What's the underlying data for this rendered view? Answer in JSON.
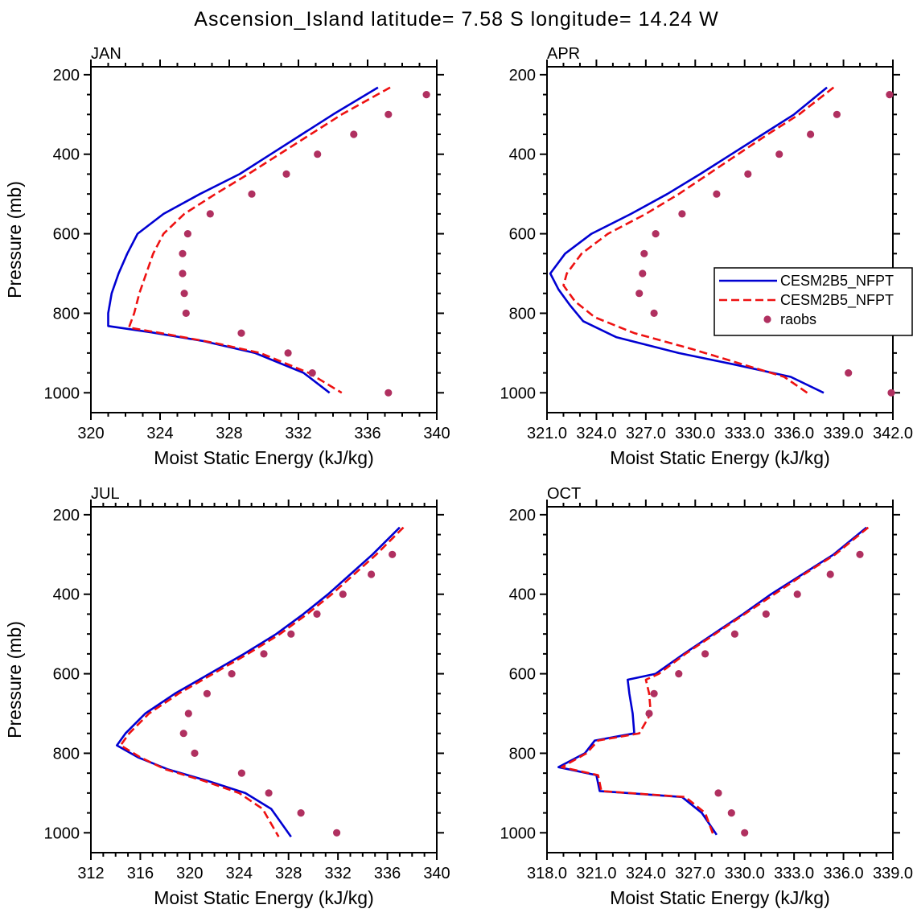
{
  "title": "Ascension_Island  latitude= 7.58 S longitude= 14.24 W",
  "colors": {
    "axis": "#000000",
    "model1": "#0000d2",
    "model2": "#ee1111",
    "raobs": "#b03060"
  },
  "legend": {
    "items": [
      {
        "type": "line",
        "style": "solid",
        "color_key": "model1",
        "label": "CESM2B5_NFPT"
      },
      {
        "type": "line",
        "style": "dashed",
        "color_key": "model2",
        "label": "CESM2B5_NFPT"
      },
      {
        "type": "dot",
        "style": "dot",
        "color_key": "raobs",
        "label": "raobs"
      }
    ]
  },
  "chart_data": {
    "type": "line",
    "title": "Ascension_Island  latitude= 7.58 S longitude= 14.24 W",
    "xlabel": "Moist Static Energy (kJ/kg)",
    "ylabel": "Pressure (mb)",
    "ylim": [
      180,
      1050
    ],
    "y_inverted": true,
    "yticks": [
      200,
      400,
      600,
      800,
      1000
    ],
    "y_minor_step": 50,
    "x_minor_step": 1,
    "series_meta": {
      "model1": {
        "label": "CESM2B5_NFPT",
        "style": "solid"
      },
      "model2": {
        "label": "CESM2B5_NFPT",
        "style": "dashed"
      },
      "raobs": {
        "label": "raobs",
        "style": "dot"
      }
    },
    "panels": [
      {
        "name": "JAN",
        "xlim": [
          320,
          340
        ],
        "xticks": [
          320,
          324,
          328,
          332,
          336,
          340
        ],
        "xtick_labels": [
          "320",
          "324",
          "328",
          "332",
          "336",
          "340"
        ],
        "show_ylabel": true,
        "legend": false,
        "series": [
          {
            "key": "model1",
            "pressure": [
              232,
              300,
              350,
              400,
              450,
              500,
              550,
              600,
              650,
              700,
              750,
              800,
              832,
              848,
              870,
              900,
              950,
              1000
            ],
            "value": [
              336.6,
              334.0,
              332.2,
              330.4,
              328.6,
              326.3,
              324.2,
              322.7,
              322.1,
              321.6,
              321.2,
              321.0,
              321.0,
              323.5,
              326.5,
              329.5,
              332.3,
              333.8
            ]
          },
          {
            "key": "model2",
            "pressure": [
              232,
              300,
              350,
              400,
              450,
              500,
              550,
              600,
              650,
              700,
              750,
              800,
              836,
              852,
              875,
              900,
              950,
              1000
            ],
            "value": [
              337.3,
              334.5,
              332.7,
              330.9,
              329.1,
              327.2,
              325.4,
              324.2,
              323.6,
              323.2,
              322.8,
              322.5,
              322.2,
              324.3,
              327.2,
              329.8,
              332.6,
              334.5
            ]
          }
        ],
        "dots": {
          "pressure": [
            250,
            300,
            350,
            400,
            450,
            500,
            550,
            600,
            650,
            700,
            750,
            800,
            850,
            900,
            950,
            1000
          ],
          "value": [
            339.4,
            337.2,
            335.2,
            333.1,
            331.3,
            329.3,
            326.9,
            325.6,
            325.3,
            325.3,
            325.4,
            325.5,
            328.7,
            331.4,
            332.8,
            337.2
          ]
        }
      },
      {
        "name": "APR",
        "xlim": [
          321,
          342
        ],
        "xticks": [
          321,
          324,
          327,
          330,
          333,
          336,
          339,
          342
        ],
        "xtick_labels": [
          "321.0",
          "324.0",
          "327.0",
          "330.0",
          "333.0",
          "336.0",
          "339.0",
          "342.0"
        ],
        "show_ylabel": false,
        "legend": true,
        "series": [
          {
            "key": "model1",
            "pressure": [
              232,
              300,
              350,
              400,
              450,
              500,
              550,
              600,
              650,
              700,
              740,
              780,
              820,
              860,
              900,
              930,
              960,
              1000
            ],
            "value": [
              338.0,
              336.0,
              334.1,
              332.2,
              330.3,
              328.3,
              326.1,
              323.7,
              322.1,
              321.2,
              321.7,
              322.4,
              323.2,
              325.2,
              329.0,
              332.5,
              335.8,
              337.8
            ]
          },
          {
            "key": "model2",
            "pressure": [
              232,
              300,
              350,
              400,
              450,
              500,
              550,
              600,
              650,
              700,
              730,
              770,
              810,
              850,
              890,
              930,
              960,
              1000
            ],
            "value": [
              338.4,
              336.3,
              334.4,
              332.6,
              330.8,
              329.0,
              327.0,
              324.7,
              323.1,
              322.2,
              322.0,
              322.7,
              323.9,
              326.3,
              329.8,
              333.0,
              335.4,
              336.8
            ]
          }
        ],
        "dots": {
          "pressure": [
            250,
            300,
            350,
            400,
            450,
            500,
            550,
            600,
            650,
            700,
            750,
            800,
            950,
            1000
          ],
          "value": [
            341.8,
            338.6,
            337.0,
            335.1,
            333.2,
            331.3,
            329.2,
            327.6,
            326.9,
            326.8,
            326.6,
            327.5,
            339.3,
            341.9
          ]
        }
      },
      {
        "name": "JUL",
        "xlim": [
          312,
          340
        ],
        "xticks": [
          312,
          316,
          320,
          324,
          328,
          332,
          336,
          340
        ],
        "xtick_labels": [
          "312",
          "316",
          "320",
          "324",
          "328",
          "332",
          "336",
          "340"
        ],
        "show_ylabel": true,
        "legend": false,
        "series": [
          {
            "key": "model1",
            "pressure": [
              232,
              300,
              350,
              400,
              450,
              500,
              550,
              600,
              650,
              700,
              750,
              780,
              810,
              840,
              870,
              900,
              940,
              1010
            ],
            "value": [
              337.0,
              334.8,
              333.0,
              331.2,
              329.2,
              327.0,
              324.4,
              321.6,
              318.8,
              316.4,
              314.8,
              314.1,
              315.8,
              318.2,
              321.5,
              324.5,
              326.6,
              328.2
            ]
          },
          {
            "key": "model2",
            "pressure": [
              232,
              300,
              350,
              400,
              450,
              500,
              550,
              600,
              650,
              700,
              750,
              780,
              810,
              840,
              870,
              900,
              940,
              1010
            ],
            "value": [
              337.3,
              335.1,
              333.3,
              331.5,
              329.5,
              327.3,
              324.7,
              321.9,
              319.1,
              316.7,
              315.1,
              314.4,
              316.0,
              318.0,
              321.2,
              324.0,
              325.9,
              327.2
            ]
          }
        ],
        "dots": {
          "pressure": [
            300,
            350,
            400,
            450,
            500,
            550,
            600,
            650,
            700,
            750,
            800,
            850,
            900,
            950,
            1000
          ],
          "value": [
            336.4,
            334.7,
            332.4,
            330.3,
            328.2,
            326.0,
            323.4,
            321.4,
            319.9,
            319.5,
            320.4,
            324.2,
            326.4,
            329.0,
            331.9
          ]
        }
      },
      {
        "name": "OCT",
        "xlim": [
          318,
          339
        ],
        "xticks": [
          318,
          321,
          324,
          327,
          330,
          333,
          336,
          339
        ],
        "xtick_labels": [
          "318.0",
          "321.0",
          "324.0",
          "327.0",
          "330.0",
          "333.0",
          "336.0",
          "339.0"
        ],
        "show_ylabel": false,
        "legend": false,
        "series": [
          {
            "key": "model1",
            "pressure": [
              232,
              300,
              350,
              400,
              450,
              500,
              550,
              600,
              615,
              650,
              700,
              750,
              768,
              800,
              835,
              855,
              895,
              910,
              950,
              1005
            ],
            "value": [
              337.4,
              335.4,
              333.5,
              331.6,
              329.9,
              328.1,
              326.3,
              324.6,
              322.9,
              323.0,
              323.2,
              323.3,
              320.9,
              320.3,
              318.7,
              321.0,
              321.2,
              326.2,
              327.4,
              328.3
            ]
          },
          {
            "key": "model2",
            "pressure": [
              232,
              300,
              350,
              400,
              450,
              500,
              550,
              600,
              615,
              650,
              700,
              750,
              768,
              800,
              835,
              855,
              895,
              910,
              950,
              1005
            ],
            "value": [
              337.5,
              335.5,
              333.6,
              331.8,
              330.0,
              328.2,
              326.4,
              324.8,
              324.0,
              324.2,
              324.3,
              323.6,
              321.1,
              320.4,
              318.9,
              321.1,
              321.3,
              326.4,
              327.6,
              328.1
            ]
          }
        ],
        "dots": {
          "pressure": [
            300,
            350,
            400,
            450,
            500,
            550,
            600,
            650,
            700,
            900,
            950,
            1000
          ],
          "value": [
            337.0,
            335.2,
            333.2,
            331.3,
            329.4,
            327.6,
            326.0,
            324.5,
            324.2,
            328.4,
            329.2,
            330.0
          ]
        }
      }
    ]
  }
}
